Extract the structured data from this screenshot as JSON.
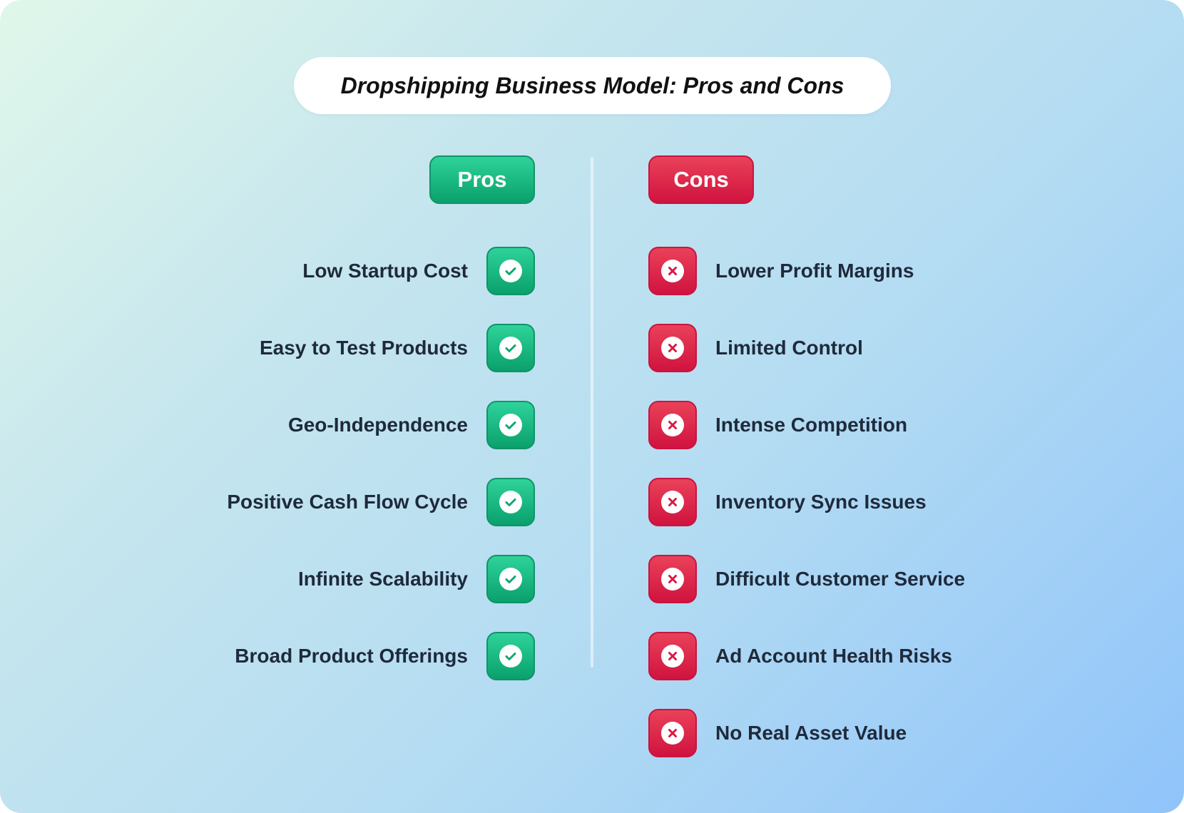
{
  "title": "Dropshipping Business Model: Pros and Cons",
  "colors": {
    "pros": "#10b981",
    "cons": "#dc1f47",
    "text": "#1e2a3b"
  },
  "pros": {
    "heading": "Pros",
    "icon": "check-circle-icon",
    "items": [
      "Low Startup Cost",
      "Easy to Test Products",
      "Geo-Independence",
      "Positive Cash Flow Cycle",
      "Infinite Scalability",
      "Broad Product Offerings"
    ]
  },
  "cons": {
    "heading": "Cons",
    "icon": "x-circle-icon",
    "items": [
      "Lower Profit Margins",
      "Limited Control",
      "Intense Competition",
      "Inventory Sync Issues",
      "Difficult Customer Service",
      "Ad Account Health Risks",
      "No Real Asset Value"
    ]
  }
}
